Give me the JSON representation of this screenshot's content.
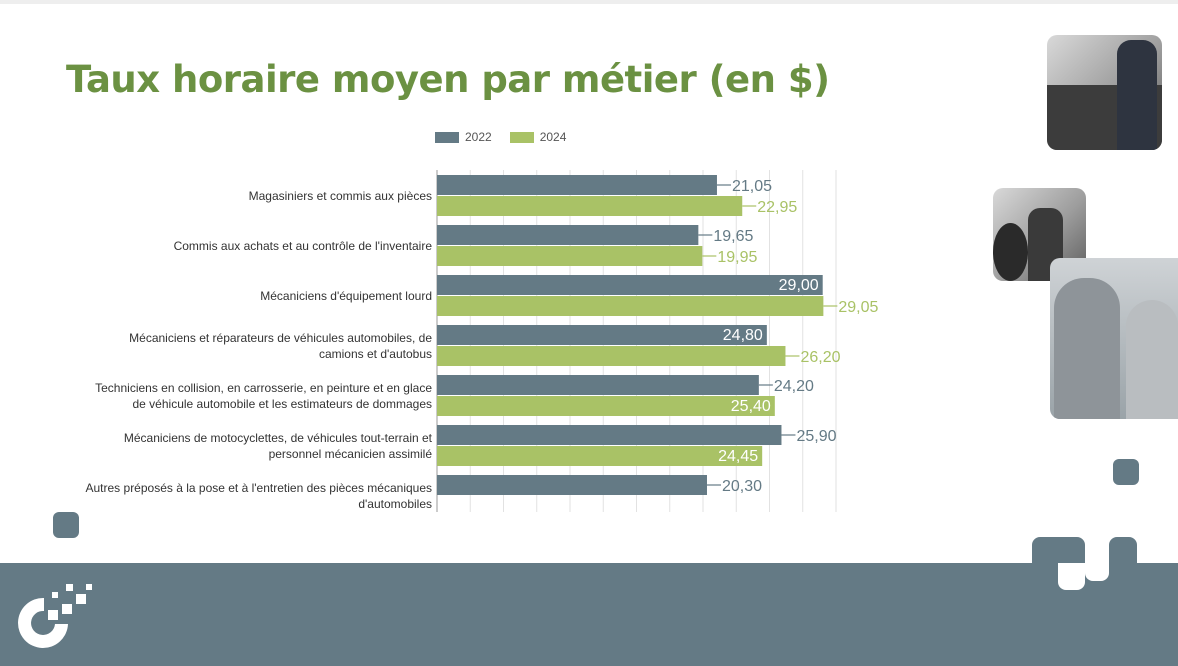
{
  "title": "Taux horaire moyen par métier (en $)",
  "colors": {
    "series_2022": "#647a85",
    "series_2024": "#a9c266",
    "title": "#6b9142"
  },
  "chart_data": {
    "type": "bar",
    "orientation": "horizontal",
    "title": "Taux horaire moyen par métier (en $)",
    "legend_position": "top",
    "grid": true,
    "categories": [
      [
        "Magasiniers et commis aux pièces"
      ],
      [
        "Commis aux achats et au contrôle de l'inventaire"
      ],
      [
        "Mécaniciens d'équipement lourd"
      ],
      [
        "Mécaniciens et réparateurs de véhicules automobiles, de",
        "camions et d'autobus"
      ],
      [
        "Techniciens en collision, en carrosserie, en peinture et en glace",
        "de véhicule automobile et les estimateurs de dommages"
      ],
      [
        "Mécaniciens de motocyclettes, de véhicules tout-terrain et",
        "personnel mécanicien assimilé"
      ],
      [
        "Autres préposés à la pose et à l'entretien des pièces mécaniques",
        "d'automobiles"
      ]
    ],
    "series": [
      {
        "name": "2022",
        "values": [
          21.05,
          19.65,
          29.0,
          24.8,
          24.2,
          25.9,
          20.3
        ],
        "labels": [
          "21,05",
          "19,65",
          "29,00",
          "24,80",
          "24,20",
          "25,90",
          "20,30"
        ]
      },
      {
        "name": "2024",
        "values": [
          22.95,
          19.95,
          29.05,
          26.2,
          25.4,
          24.45,
          null
        ],
        "labels": [
          "22,95",
          "19,95",
          "29,05",
          "26,20",
          "25,40",
          "24,45",
          null
        ]
      }
    ]
  }
}
